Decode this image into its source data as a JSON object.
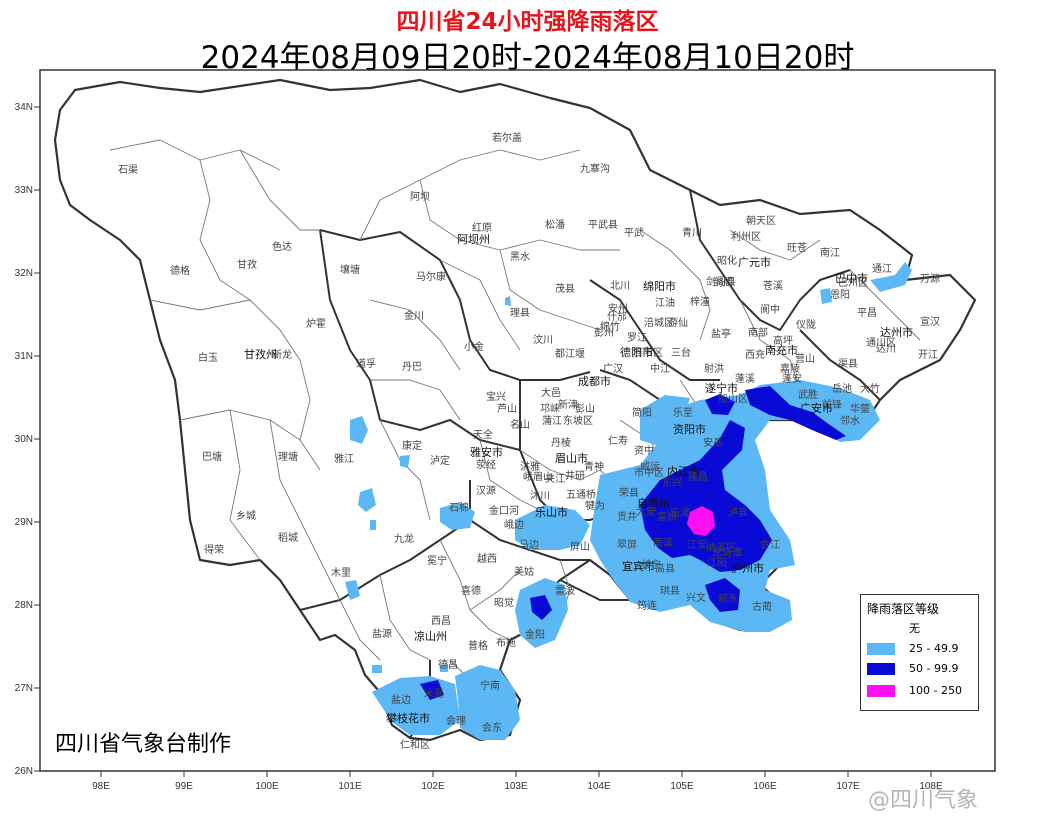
{
  "title": "四川省24小时强降雨落区",
  "subtitle": "2024年08月09日20时-2024年08月10日20时",
  "credit": "四川省气象台制作",
  "watermark": "@四川气象",
  "axes": {
    "lat_labels": [
      "34N",
      "33N",
      "32N",
      "31N",
      "30N",
      "29N",
      "28N",
      "27N",
      "26N"
    ],
    "lon_labels": [
      "98E",
      "99E",
      "100E",
      "101E",
      "102E",
      "103E",
      "104E",
      "105E",
      "106E",
      "107E",
      "108E"
    ]
  },
  "legend": {
    "title": "降雨落区等级",
    "items": [
      {
        "label": "无",
        "color": "#ffffff"
      },
      {
        "label": "25 - 49.9",
        "color": "#5cb8f5"
      },
      {
        "label": "50 - 99.9",
        "color": "#0a0ad6"
      },
      {
        "label": "100 - 250",
        "color": "#ff10f0"
      }
    ]
  },
  "city_labels": [
    "阿坝州",
    "甘孜州",
    "雅安市",
    "乐山市",
    "凉山州",
    "攀枝花市",
    "成都市",
    "德阳市",
    "绵阳市",
    "广元市",
    "巴中市",
    "达州市",
    "南充市",
    "广安市",
    "遂宁市",
    "资阳市",
    "内江市",
    "自贡市",
    "宜宾市",
    "泸州市",
    "眉山市"
  ],
  "county_labels": [
    "石渠",
    "若尔盖",
    "九寨沟",
    "阿坝",
    "红原",
    "松潘",
    "平武",
    "青川",
    "朝天区",
    "利州区",
    "旺苍",
    "南江",
    "通江",
    "万源",
    "苍溪",
    "平昌",
    "宣汉",
    "开江",
    "大竹",
    "邻水",
    "渠县",
    "仪陇",
    "营山",
    "阆中",
    "剑阁",
    "梓潼",
    "北川",
    "茂县",
    "黑水",
    "理县",
    "汶川",
    "色达",
    "甘孜",
    "德格",
    "壤塘",
    "马尔康",
    "金川",
    "小金",
    "炉霍",
    "白玉",
    "新龙",
    "道孚",
    "丹巴",
    "巴塘",
    "理塘",
    "雅江",
    "康定",
    "泸定",
    "天全",
    "荥经",
    "汉源",
    "石棉",
    "九龙",
    "乡城",
    "稻城",
    "得荣",
    "木里",
    "冕宁",
    "越西",
    "喜德",
    "昭觉",
    "美姑",
    "雷波",
    "金阳",
    "布拖",
    "西昌",
    "普格",
    "盐源",
    "德昌",
    "会理",
    "会东",
    "宁南",
    "米易",
    "盐边",
    "仁和区",
    "宝兴",
    "芦山",
    "名山",
    "邛崃",
    "大邑",
    "都江堰",
    "彭州",
    "什邡",
    "绵竹",
    "中江",
    "三台",
    "射洪",
    "蓬溪",
    "西充",
    "南部",
    "船山区",
    "安岳",
    "乐至",
    "简阳",
    "仁寿",
    "井研",
    "沐川",
    "马边",
    "屏山",
    "高县",
    "珙县",
    "筠连",
    "兴文",
    "叙永",
    "古蔺",
    "合江",
    "纳溪区",
    "隆昌",
    "富顺",
    "荣县",
    "威远",
    "犍为",
    "五通桥",
    "峨眉山",
    "峨边",
    "金口河",
    "洪雅",
    "丹棱",
    "青神",
    "夹江",
    "东坡区",
    "彭山",
    "新津",
    "蒲江",
    "岳池",
    "武胜",
    "华蓥",
    "前锋",
    "江油",
    "安州",
    "罗江",
    "广汉",
    "旌阳区",
    "涪城区",
    "游仙",
    "盐亭",
    "蓬安",
    "高坪",
    "嘉陵",
    "恩阳",
    "巴州区",
    "达川",
    "通川区",
    "昭化",
    "剑阁县",
    "资中",
    "东兴",
    "市中区",
    "大安",
    "贡井",
    "沿滩",
    "翠屏",
    "南溪",
    "江安",
    "长宁",
    "江阳",
    "龙马潭",
    "泸县",
    "平武县"
  ]
}
